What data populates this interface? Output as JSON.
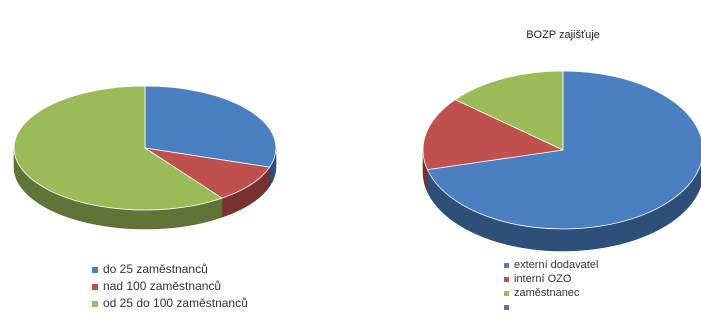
{
  "chart_data": [
    {
      "type": "pie",
      "title": "",
      "categories": [
        "do 25 zaměstnanců",
        "nad 100 zaměstnanců",
        "od 25 do 100 zaměstnanců"
      ],
      "values": [
        30,
        10,
        60
      ],
      "colors": [
        "#4a7fc1",
        "#c0504d",
        "#9bbb59"
      ],
      "legend": "bottom"
    },
    {
      "type": "pie",
      "title": "BOZP zajišťuje",
      "categories": [
        "externí dodavatel",
        "interní OZO",
        "zaměstnanec",
        ""
      ],
      "values": [
        71,
        15,
        14,
        0
      ],
      "colors": [
        "#4a7fc1",
        "#c0504d",
        "#9bbb59",
        "#8064a2"
      ],
      "legend": "bottom"
    }
  ]
}
